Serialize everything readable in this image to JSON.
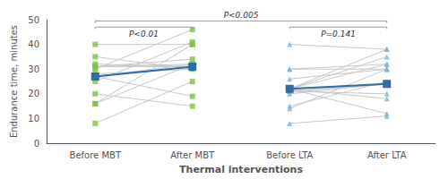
{
  "chart_data": {
    "type": "paired",
    "xlabel": "Thermal interventions",
    "ylabel": "Endurance time, minutes",
    "categories": [
      "Before MBT",
      "After MBT",
      "Before LTA",
      "After LTA"
    ],
    "ylim": [
      0,
      50
    ],
    "yticks": [
      0,
      10,
      20,
      30,
      40,
      50
    ],
    "grid": false,
    "series": [
      {
        "type": "scatter",
        "marker": "square",
        "color": "#7dc343",
        "x": [
          "Before MBT",
          "After MBT"
        ],
        "before": [
          27,
          31,
          32,
          31,
          30,
          25,
          16,
          40,
          35,
          20,
          27,
          27,
          31,
          27,
          27,
          28,
          27,
          8,
          16
        ],
        "after": [
          31,
          32,
          31,
          31,
          46,
          41,
          40,
          40,
          30,
          15,
          31,
          32,
          34,
          31,
          31,
          30,
          19,
          25,
          32
        ],
        "links": {
          "color": "#c8c8c8"
        },
        "mean": {
          "color": "#2e6da4",
          "marker": "square",
          "values": [
            27,
            31
          ]
        }
      },
      {
        "type": "scatter",
        "marker": "triangle",
        "color": "#7ab3d3",
        "x": [
          "Before LTA",
          "After LTA"
        ],
        "before": [
          22,
          21,
          30,
          26,
          22,
          22,
          22,
          40,
          30,
          14,
          21,
          22,
          22,
          20,
          8,
          21,
          15,
          22
        ],
        "after": [
          24,
          24,
          30,
          30,
          38,
          35,
          32,
          38,
          32,
          30,
          20,
          18,
          12,
          24,
          11,
          24,
          25,
          24
        ],
        "links": {
          "color": "#c8c8c8"
        },
        "mean": {
          "color": "#2e6da4",
          "marker": "square",
          "values": [
            22,
            24
          ]
        }
      }
    ],
    "annotations": [
      {
        "text": "P<0.01",
        "from": "Before MBT",
        "to": "After MBT",
        "y": 47
      },
      {
        "text": "P=0.141",
        "from": "Before LTA",
        "to": "After LTA",
        "y": 47
      },
      {
        "text": "P<0.005",
        "from": "Before MBT",
        "to": "After LTA",
        "y": 49.5
      }
    ]
  }
}
